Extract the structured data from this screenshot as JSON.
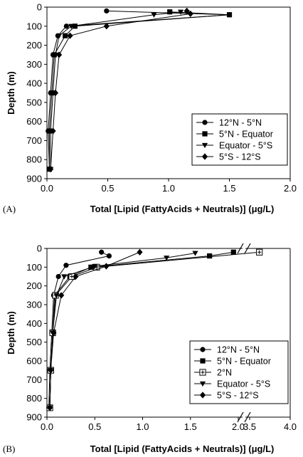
{
  "chart_data": [
    {
      "panel_label": "(A)",
      "type": "line",
      "marker_style": "filled",
      "xlabel": "Total [Lipid (FattyAcids + Neutrals)] (μg/L)",
      "ylabel": "Depth (m)",
      "xlim": [
        0,
        2.0
      ],
      "ylim": [
        0,
        900
      ],
      "y_inverted": true,
      "x_ticks": [
        "0.0",
        "0.5",
        "1.0",
        "1.5",
        "2.0"
      ],
      "y_ticks": [
        "0",
        "100",
        "200",
        "300",
        "400",
        "500",
        "600",
        "700",
        "800",
        "900"
      ],
      "legend_position": "bottom-right",
      "series": [
        {
          "name": "12°N - 5°N",
          "marker": "circle",
          "points": [
            [
              0.49,
              20
            ],
            [
              1.5,
              40
            ],
            [
              0.16,
              100
            ],
            [
              0.09,
              150
            ],
            [
              0.05,
              250
            ],
            [
              0.03,
              450
            ],
            [
              0.01,
              650
            ],
            [
              0.02,
              850
            ]
          ]
        },
        {
          "name": "5°N - Equator",
          "marker": "square",
          "points": [
            [
              1.01,
              25
            ],
            [
              1.5,
              40
            ],
            [
              0.23,
              100
            ],
            [
              0.15,
              150
            ],
            [
              0.06,
              250
            ],
            [
              0.04,
              450
            ],
            [
              0.02,
              650
            ],
            [
              0.02,
              850
            ]
          ]
        },
        {
          "name": "Equator - 5°S",
          "marker": "triangle",
          "points": [
            [
              1.1,
              25
            ],
            [
              0.88,
              40
            ],
            [
              0.2,
              100
            ],
            [
              0.1,
              150
            ],
            [
              0.07,
              250
            ],
            [
              0.05,
              450
            ],
            [
              0.03,
              650
            ],
            [
              0.03,
              850
            ]
          ]
        },
        {
          "name": "5°S - 12°S",
          "marker": "diamond",
          "points": [
            [
              1.15,
              20
            ],
            [
              1.18,
              35
            ],
            [
              0.49,
              100
            ],
            [
              0.19,
              150
            ],
            [
              0.1,
              250
            ],
            [
              0.07,
              450
            ],
            [
              0.05,
              650
            ],
            [
              0.03,
              850
            ]
          ]
        }
      ]
    },
    {
      "panel_label": "(B)",
      "type": "line",
      "marker_style": "filled",
      "xlabel": "Total [Lipid (FattyAcids + Neutrals)] (μg/L)",
      "ylabel": "Depth (m)",
      "xlim": [
        0,
        2.0
      ],
      "x_break": [
        2.0,
        3.5
      ],
      "xlim_after_break": [
        3.5,
        4.0
      ],
      "ylim": [
        0,
        900
      ],
      "y_inverted": true,
      "x_ticks": [
        "0.0",
        "0.5",
        "1.0",
        "1.5",
        "2.0",
        "3.5",
        "4.0"
      ],
      "y_ticks": [
        "0",
        "100",
        "200",
        "300",
        "400",
        "500",
        "600",
        "700",
        "800",
        "900"
      ],
      "legend_position": "bottom-right",
      "series": [
        {
          "name": "12°N - 5°N",
          "marker": "circle",
          "points": [
            [
              0.57,
              20
            ],
            [
              0.65,
              40
            ],
            [
              0.2,
              90
            ],
            [
              0.12,
              150
            ],
            [
              0.07,
              250
            ],
            [
              0.05,
              450
            ],
            [
              0.03,
              650
            ],
            [
              0.02,
              850
            ]
          ]
        },
        {
          "name": "5°N - Equator",
          "marker": "square",
          "points": [
            [
              1.95,
              20
            ],
            [
              1.7,
              40
            ],
            [
              0.46,
              100
            ],
            [
              0.24,
              150
            ],
            [
              0.08,
              250
            ],
            [
              0.06,
              450
            ],
            [
              0.04,
              650
            ],
            [
              0.03,
              850
            ]
          ]
        },
        {
          "name": "2°N",
          "marker": "square-open",
          "points": [
            [
              3.62,
              20
            ],
            [
              0.52,
              100
            ],
            [
              0.26,
              150
            ],
            [
              0.09,
              250
            ],
            [
              0.06,
              450
            ],
            [
              0.04,
              650
            ],
            [
              0.03,
              850
            ]
          ]
        },
        {
          "name": "Equator - 5°S",
          "marker": "triangle",
          "points": [
            [
              1.55,
              25
            ],
            [
              1.25,
              50
            ],
            [
              0.5,
              95
            ],
            [
              0.18,
              150
            ],
            [
              0.1,
              250
            ],
            [
              0.06,
              450
            ],
            [
              0.04,
              650
            ],
            [
              0.03,
              850
            ]
          ]
        },
        {
          "name": "5°S - 12°S",
          "marker": "diamond",
          "points": [
            [
              0.97,
              20
            ],
            [
              0.62,
              95
            ],
            [
              0.3,
              150
            ],
            [
              0.15,
              250
            ],
            [
              0.07,
              450
            ],
            [
              0.04,
              650
            ],
            [
              0.03,
              850
            ]
          ]
        }
      ]
    }
  ]
}
